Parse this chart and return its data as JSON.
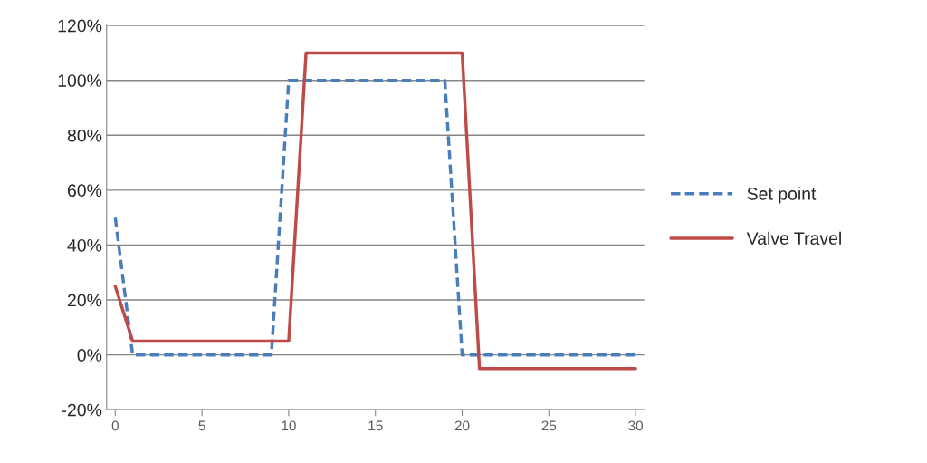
{
  "chart_data": {
    "type": "line",
    "x": [
      0,
      1,
      2,
      3,
      4,
      5,
      6,
      7,
      8,
      9,
      10,
      11,
      12,
      13,
      14,
      15,
      16,
      17,
      18,
      19,
      20,
      21,
      22,
      23,
      24,
      25,
      26,
      27,
      28,
      29,
      30
    ],
    "series": [
      {
        "name": "Set point",
        "color": "#4a7ebb",
        "line_style": "dashed",
        "values": [
          0.5,
          0,
          0,
          0,
          0,
          0,
          0,
          0,
          0,
          0,
          1,
          1,
          1,
          1,
          1,
          1,
          1,
          1,
          1,
          1,
          0,
          0,
          0,
          0,
          0,
          0,
          0,
          0,
          0,
          0,
          0
        ]
      },
      {
        "name": "Valve Travel",
        "color": "#be4b48",
        "line_style": "solid",
        "values": [
          0.25,
          0.05,
          0.05,
          0.05,
          0.05,
          0.05,
          0.05,
          0.05,
          0.05,
          0.05,
          0.05,
          1.1,
          1.1,
          1.1,
          1.1,
          1.1,
          1.1,
          1.1,
          1.1,
          1.1,
          1.1,
          -0.05,
          -0.05,
          -0.05,
          -0.05,
          -0.05,
          -0.05,
          -0.05,
          -0.05,
          -0.05,
          -0.05
        ]
      }
    ],
    "xlim": [
      -0.5,
      30.5
    ],
    "xticks": [
      0,
      5,
      10,
      15,
      20,
      25,
      30
    ],
    "ylim": [
      -0.2,
      1.2
    ],
    "yticks": [
      {
        "value": -0.2,
        "label": "-20%"
      },
      {
        "value": 0,
        "label": "0%"
      },
      {
        "value": 0.2,
        "label": "20%"
      },
      {
        "value": 0.4,
        "label": "40%"
      },
      {
        "value": 0.6,
        "label": "60%"
      },
      {
        "value": 0.8,
        "label": "80%"
      },
      {
        "value": 1.0,
        "label": "100%"
      },
      {
        "value": 1.2,
        "label": "120%"
      }
    ],
    "grid": "y",
    "legend": "right",
    "marker": "none"
  }
}
